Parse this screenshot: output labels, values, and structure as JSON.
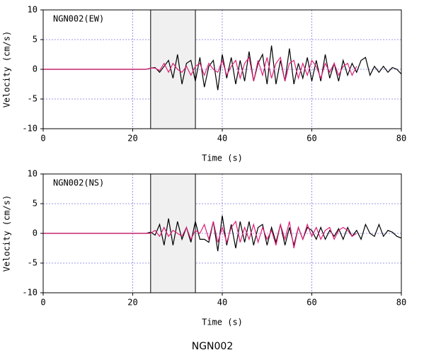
{
  "title": "NGN002",
  "chart_data": [
    {
      "type": "line",
      "annotation": "NGN002(EW)",
      "xlabel": "Time (s)",
      "ylabel": "Velocity (cm/s)",
      "xlim": [
        0,
        80
      ],
      "ylim": [
        -10,
        10
      ],
      "xticks": [
        0,
        20,
        40,
        60,
        80
      ],
      "yticks": [
        -10,
        -5,
        0,
        5,
        10
      ],
      "grid": true,
      "span": [
        24,
        34
      ],
      "x": [
        0,
        23,
        24,
        25,
        26,
        27,
        28,
        29,
        30,
        31,
        32,
        33,
        34,
        35,
        36,
        37,
        38,
        39,
        40,
        41,
        42,
        43,
        44,
        45,
        46,
        47,
        48,
        49,
        50,
        51,
        52,
        53,
        54,
        55,
        56,
        57,
        58,
        59,
        60,
        61,
        62,
        63,
        64,
        65,
        66,
        67,
        68,
        69,
        70,
        71,
        72,
        73,
        74,
        75,
        76,
        77,
        78,
        79,
        80
      ],
      "series": [
        {
          "color": "#000000",
          "values": [
            0,
            0,
            0.2,
            0.3,
            -0.5,
            0.5,
            1.5,
            -1.5,
            2.5,
            -2.5,
            1,
            1.5,
            -2,
            2,
            -3,
            0.5,
            1.5,
            -3.5,
            2.5,
            -1.5,
            2,
            -2.5,
            1.5,
            -2,
            3,
            -2,
            1,
            2.5,
            -2.5,
            4,
            -2.5,
            1.5,
            -2,
            3.5,
            -2.5,
            1,
            -1.5,
            2,
            -2,
            1.5,
            -2,
            2.5,
            -1.5,
            1,
            -2,
            1.5,
            -1,
            1,
            -0.5,
            1.5,
            2,
            -1,
            0.5,
            -0.5,
            0.5,
            -0.5,
            0.3,
            0,
            -0.8
          ]
        },
        {
          "color": "#e0207a",
          "values": [
            0,
            0,
            0.2,
            0.2,
            -0.2,
            1,
            -0.5,
            1,
            0,
            -0.5,
            0.5,
            -1,
            0.5,
            1,
            -1,
            1,
            0,
            -0.5,
            1.5,
            -1,
            0.5,
            1.5,
            -1.5,
            1,
            2,
            -2,
            1.5,
            -1,
            2,
            -1.5,
            1,
            2,
            -2,
            1,
            1.5,
            -1.5,
            1,
            -1,
            1.5,
            0.5,
            -1.5,
            1,
            -0.5,
            1,
            -1,
            0.5,
            1,
            -1,
            0.5,
            null,
            null,
            null,
            null,
            null,
            null,
            null,
            null,
            null,
            null
          ]
        }
      ]
    },
    {
      "type": "line",
      "annotation": "NGN002(NS)",
      "xlabel": "Time (s)",
      "ylabel": "Velocity (cm/s)",
      "xlim": [
        0,
        80
      ],
      "ylim": [
        -10,
        10
      ],
      "xticks": [
        0,
        20,
        40,
        60,
        80
      ],
      "yticks": [
        -10,
        -5,
        0,
        5,
        10
      ],
      "grid": true,
      "span": [
        24,
        34
      ],
      "x": [
        0,
        23,
        24,
        25,
        26,
        27,
        28,
        29,
        30,
        31,
        32,
        33,
        34,
        35,
        36,
        37,
        38,
        39,
        40,
        41,
        42,
        43,
        44,
        45,
        46,
        47,
        48,
        49,
        50,
        51,
        52,
        53,
        54,
        55,
        56,
        57,
        58,
        59,
        60,
        61,
        62,
        63,
        64,
        65,
        66,
        67,
        68,
        69,
        70,
        71,
        72,
        73,
        74,
        75,
        76,
        77,
        78,
        79,
        80
      ],
      "series": [
        {
          "color": "#000000",
          "values": [
            0,
            0,
            0.2,
            -0.3,
            1.5,
            -2,
            2.5,
            -2,
            2,
            -1,
            1,
            -1.5,
            2,
            -1,
            -1,
            -1.5,
            2,
            -3,
            3,
            -2,
            1.5,
            -2.5,
            2,
            -1.5,
            2,
            -2,
            1,
            1.5,
            -2,
            1,
            -1.5,
            1.5,
            -2,
            1,
            -2,
            1,
            -1,
            1,
            0.5,
            -1,
            1,
            -1,
            0.5,
            -0.5,
            0.8,
            -1,
            1,
            -0.5,
            0.5,
            -1,
            1.5,
            0,
            -0.5,
            1.5,
            -0.5,
            0.5,
            0.2,
            -0.5,
            -0.8
          ]
        },
        {
          "color": "#e0207a",
          "values": [
            0,
            0,
            0,
            0.5,
            -0.5,
            1,
            -0.5,
            0.5,
            0,
            -0.5,
            1,
            -1,
            0.5,
            0,
            1.5,
            -1,
            2,
            -1.5,
            1,
            -1.5,
            1,
            2,
            -1.5,
            1,
            -1,
            1.5,
            -1.5,
            1,
            -1,
            0.5,
            -2,
            1.5,
            -1,
            2,
            -2.5,
            1,
            -1,
            1.5,
            -0.5,
            1,
            -1,
            0.5,
            1,
            -1,
            0.5,
            1,
            0.5,
            -0.5,
            0,
            null,
            null,
            null,
            null,
            null,
            null,
            null,
            null,
            null,
            null
          ]
        }
      ]
    }
  ]
}
